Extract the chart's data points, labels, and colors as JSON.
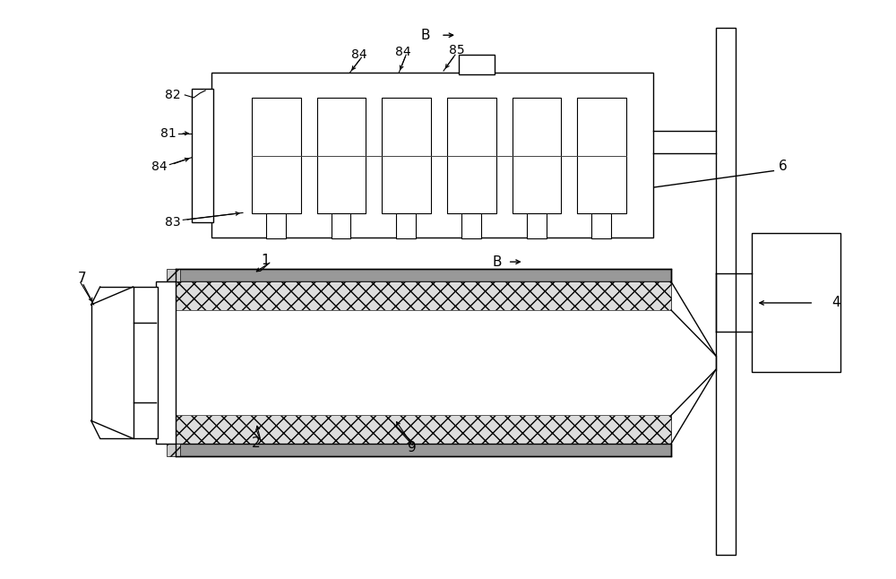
{
  "bg_color": "#ffffff",
  "line_color": "#000000",
  "fig_width": 10.0,
  "fig_height": 6.46,
  "dpi": 100,
  "lw": 1.0
}
